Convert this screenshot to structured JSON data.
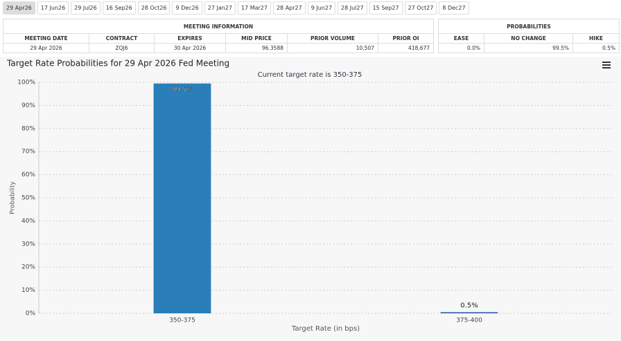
{
  "tabs": [
    "29 Apr26",
    "17 Jun26",
    "29 Jul26",
    "16 Sep26",
    "28 Oct26",
    "9 Dec26",
    "27 Jan27",
    "17 Mar27",
    "28 Apr27",
    "9 Jun27",
    "28 Jul27",
    "15 Sep27",
    "27 Oct27",
    "8 Dec27"
  ],
  "meeting_info": {
    "title": "MEETING INFORMATION",
    "columns": [
      "MEETING DATE",
      "CONTRACT",
      "EXPIRES",
      "MID PRICE",
      "PRIOR VOLUME",
      "PRIOR OI"
    ],
    "row": [
      "29 Apr 2026",
      "ZQJ6",
      "30 Apr 2026",
      "96.3588",
      "10,507",
      "418,677"
    ]
  },
  "probabilities": {
    "title": "PROBABILITIES",
    "columns": [
      "EASE",
      "NO CHANGE",
      "HIKE"
    ],
    "row": [
      "0.0%",
      "99.5%",
      "0.5%"
    ]
  },
  "chart_data": {
    "type": "bar",
    "title": "Target Rate Probabilities for 29 Apr 2026 Fed Meeting",
    "subtitle": "Current target rate is 350-375",
    "x_label": "Target Rate (in bps)",
    "y_label": "Probability",
    "categories": [
      "350-375",
      "375-400"
    ],
    "values": [
      99.5,
      0.5
    ],
    "value_labels": [
      "99.5%",
      "0.5%"
    ],
    "colors": [
      "#2a7fba",
      "#3d5fb8"
    ],
    "ylim": [
      0,
      100
    ],
    "yticks": [
      {
        "value": 0,
        "label": "0%"
      },
      {
        "value": 10,
        "label": "10%"
      },
      {
        "value": 20,
        "label": "20%"
      },
      {
        "value": 30,
        "label": "30%"
      },
      {
        "value": 40,
        "label": "40%"
      },
      {
        "value": 50,
        "label": "50%"
      },
      {
        "value": 60,
        "label": "60%"
      },
      {
        "value": 70,
        "label": "70%"
      },
      {
        "value": 80,
        "label": "80%"
      },
      {
        "value": 90,
        "label": "90%"
      },
      {
        "value": 100,
        "label": "100%"
      }
    ],
    "grid": true
  }
}
